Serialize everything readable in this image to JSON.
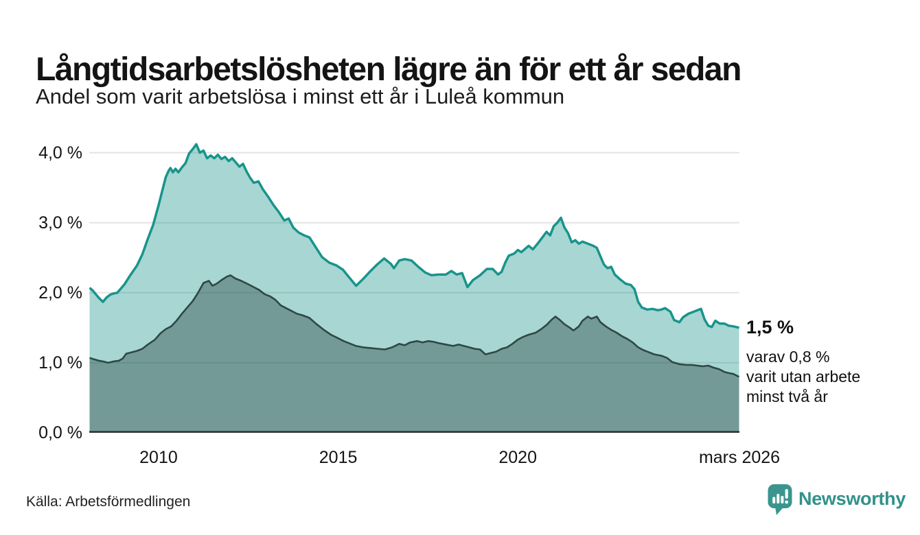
{
  "header": {
    "title": "Långtidsarbetslösheten lägre än för ett år sedan",
    "subtitle": "Andel som varit arbetslösa i minst ett år i Luleå kommun"
  },
  "chart_data": {
    "type": "area",
    "title": "Långtidsarbetslösheten lägre än för ett år sedan",
    "subtitle": "Andel som varit arbetslösa i minst ett år i Luleå kommun",
    "unit": "%",
    "grid": "horizontal",
    "legend": "none",
    "x_range": [
      2008.07,
      2026.17
    ],
    "y_range": [
      0,
      4.27
    ],
    "y_axis": {
      "ticks": [
        {
          "label": "0,0 %",
          "value": 0
        },
        {
          "label": "1,0 %",
          "value": 1
        },
        {
          "label": "2,0 %",
          "value": 2
        },
        {
          "label": "3,0 %",
          "value": 3
        },
        {
          "label": "4,0 %",
          "value": 4
        }
      ]
    },
    "x_axis": {
      "ticks": [
        {
          "label": "2010",
          "value": 2010
        },
        {
          "label": "2015",
          "value": 2015
        },
        {
          "label": "2020",
          "value": 2020
        },
        {
          "label": "mars 2026",
          "value": 2026.17
        }
      ]
    },
    "series": [
      {
        "name": "arbetslösa minst ett år",
        "line_color": "#18948b",
        "fill_color": "rgba(24,148,139,0.38)",
        "line_width": 3.5,
        "end_value_label": "1,5 %",
        "points": [
          [
            2008.08,
            2.07
          ],
          [
            2008.17,
            2.03
          ],
          [
            2008.25,
            1.98
          ],
          [
            2008.33,
            1.93
          ],
          [
            2008.45,
            1.87
          ],
          [
            2008.55,
            1.93
          ],
          [
            2008.65,
            1.97
          ],
          [
            2008.75,
            1.99
          ],
          [
            2008.85,
            2.0
          ],
          [
            2008.95,
            2.06
          ],
          [
            2009.05,
            2.12
          ],
          [
            2009.2,
            2.24
          ],
          [
            2009.4,
            2.39
          ],
          [
            2009.55,
            2.55
          ],
          [
            2009.7,
            2.77
          ],
          [
            2009.85,
            2.97
          ],
          [
            2010.0,
            3.25
          ],
          [
            2010.1,
            3.45
          ],
          [
            2010.2,
            3.65
          ],
          [
            2010.28,
            3.74
          ],
          [
            2010.33,
            3.78
          ],
          [
            2010.4,
            3.72
          ],
          [
            2010.47,
            3.77
          ],
          [
            2010.55,
            3.72
          ],
          [
            2010.65,
            3.79
          ],
          [
            2010.75,
            3.85
          ],
          [
            2010.85,
            3.99
          ],
          [
            2010.95,
            4.05
          ],
          [
            2011.05,
            4.12
          ],
          [
            2011.15,
            4.0
          ],
          [
            2011.25,
            4.03
          ],
          [
            2011.35,
            3.92
          ],
          [
            2011.45,
            3.96
          ],
          [
            2011.55,
            3.92
          ],
          [
            2011.65,
            3.97
          ],
          [
            2011.75,
            3.91
          ],
          [
            2011.85,
            3.94
          ],
          [
            2011.95,
            3.88
          ],
          [
            2012.05,
            3.92
          ],
          [
            2012.15,
            3.86
          ],
          [
            2012.25,
            3.8
          ],
          [
            2012.35,
            3.84
          ],
          [
            2012.45,
            3.73
          ],
          [
            2012.55,
            3.64
          ],
          [
            2012.65,
            3.57
          ],
          [
            2012.78,
            3.59
          ],
          [
            2012.9,
            3.48
          ],
          [
            2013.05,
            3.37
          ],
          [
            2013.2,
            3.25
          ],
          [
            2013.35,
            3.15
          ],
          [
            2013.5,
            3.03
          ],
          [
            2013.62,
            3.06
          ],
          [
            2013.75,
            2.93
          ],
          [
            2013.9,
            2.86
          ],
          [
            2014.05,
            2.82
          ],
          [
            2014.2,
            2.79
          ],
          [
            2014.35,
            2.67
          ],
          [
            2014.55,
            2.51
          ],
          [
            2014.75,
            2.43
          ],
          [
            2014.95,
            2.39
          ],
          [
            2015.13,
            2.33
          ],
          [
            2015.32,
            2.21
          ],
          [
            2015.5,
            2.1
          ],
          [
            2015.7,
            2.2
          ],
          [
            2015.9,
            2.31
          ],
          [
            2016.1,
            2.41
          ],
          [
            2016.28,
            2.49
          ],
          [
            2016.47,
            2.41
          ],
          [
            2016.55,
            2.35
          ],
          [
            2016.7,
            2.46
          ],
          [
            2016.85,
            2.48
          ],
          [
            2017.04,
            2.46
          ],
          [
            2017.23,
            2.37
          ],
          [
            2017.42,
            2.29
          ],
          [
            2017.6,
            2.25
          ],
          [
            2017.8,
            2.26
          ],
          [
            2018.0,
            2.26
          ],
          [
            2018.15,
            2.31
          ],
          [
            2018.3,
            2.26
          ],
          [
            2018.45,
            2.28
          ],
          [
            2018.6,
            2.08
          ],
          [
            2018.75,
            2.18
          ],
          [
            2018.95,
            2.25
          ],
          [
            2019.14,
            2.34
          ],
          [
            2019.3,
            2.34
          ],
          [
            2019.45,
            2.26
          ],
          [
            2019.55,
            2.3
          ],
          [
            2019.65,
            2.43
          ],
          [
            2019.75,
            2.53
          ],
          [
            2019.9,
            2.56
          ],
          [
            2020.0,
            2.61
          ],
          [
            2020.1,
            2.58
          ],
          [
            2020.3,
            2.67
          ],
          [
            2020.42,
            2.62
          ],
          [
            2020.55,
            2.7
          ],
          [
            2020.7,
            2.8
          ],
          [
            2020.8,
            2.87
          ],
          [
            2020.9,
            2.82
          ],
          [
            2021.0,
            2.95
          ],
          [
            2021.1,
            3.0
          ],
          [
            2021.2,
            3.07
          ],
          [
            2021.3,
            2.93
          ],
          [
            2021.4,
            2.85
          ],
          [
            2021.5,
            2.72
          ],
          [
            2021.6,
            2.75
          ],
          [
            2021.7,
            2.7
          ],
          [
            2021.8,
            2.73
          ],
          [
            2021.9,
            2.71
          ],
          [
            2022.0,
            2.69
          ],
          [
            2022.1,
            2.67
          ],
          [
            2022.2,
            2.64
          ],
          [
            2022.3,
            2.52
          ],
          [
            2022.4,
            2.4
          ],
          [
            2022.5,
            2.35
          ],
          [
            2022.6,
            2.37
          ],
          [
            2022.7,
            2.26
          ],
          [
            2022.85,
            2.19
          ],
          [
            2023.0,
            2.13
          ],
          [
            2023.15,
            2.11
          ],
          [
            2023.25,
            2.05
          ],
          [
            2023.35,
            1.87
          ],
          [
            2023.45,
            1.79
          ],
          [
            2023.6,
            1.76
          ],
          [
            2023.75,
            1.77
          ],
          [
            2023.9,
            1.75
          ],
          [
            2024.0,
            1.76
          ],
          [
            2024.1,
            1.78
          ],
          [
            2024.25,
            1.73
          ],
          [
            2024.35,
            1.61
          ],
          [
            2024.5,
            1.58
          ],
          [
            2024.6,
            1.65
          ],
          [
            2024.75,
            1.7
          ],
          [
            2024.9,
            1.73
          ],
          [
            2025.0,
            1.75
          ],
          [
            2025.1,
            1.77
          ],
          [
            2025.2,
            1.62
          ],
          [
            2025.3,
            1.53
          ],
          [
            2025.4,
            1.51
          ],
          [
            2025.5,
            1.6
          ],
          [
            2025.62,
            1.56
          ],
          [
            2025.75,
            1.56
          ],
          [
            2025.87,
            1.53
          ],
          [
            2026.0,
            1.52
          ],
          [
            2026.16,
            1.5
          ]
        ]
      },
      {
        "name": "arbetslösa minst två år",
        "line_color": "#2e4843",
        "fill_color": "rgba(42,72,66,0.42)",
        "line_width": 2.6,
        "end_value_label": "0,8 %",
        "points": [
          [
            2008.08,
            1.07
          ],
          [
            2008.2,
            1.05
          ],
          [
            2008.33,
            1.03
          ],
          [
            2008.45,
            1.02
          ],
          [
            2008.6,
            1.0
          ],
          [
            2008.75,
            1.02
          ],
          [
            2008.9,
            1.03
          ],
          [
            2009.0,
            1.06
          ],
          [
            2009.1,
            1.13
          ],
          [
            2009.25,
            1.15
          ],
          [
            2009.4,
            1.17
          ],
          [
            2009.55,
            1.2
          ],
          [
            2009.7,
            1.26
          ],
          [
            2009.9,
            1.33
          ],
          [
            2010.05,
            1.42
          ],
          [
            2010.2,
            1.48
          ],
          [
            2010.35,
            1.52
          ],
          [
            2010.5,
            1.6
          ],
          [
            2010.65,
            1.7
          ],
          [
            2010.8,
            1.79
          ],
          [
            2010.95,
            1.88
          ],
          [
            2011.1,
            2.0
          ],
          [
            2011.25,
            2.14
          ],
          [
            2011.4,
            2.17
          ],
          [
            2011.5,
            2.1
          ],
          [
            2011.62,
            2.13
          ],
          [
            2011.75,
            2.18
          ],
          [
            2011.9,
            2.23
          ],
          [
            2012.0,
            2.25
          ],
          [
            2012.15,
            2.2
          ],
          [
            2012.3,
            2.17
          ],
          [
            2012.5,
            2.12
          ],
          [
            2012.65,
            2.08
          ],
          [
            2012.8,
            2.04
          ],
          [
            2012.95,
            1.98
          ],
          [
            2013.1,
            1.95
          ],
          [
            2013.25,
            1.9
          ],
          [
            2013.4,
            1.82
          ],
          [
            2013.55,
            1.78
          ],
          [
            2013.7,
            1.74
          ],
          [
            2013.85,
            1.7
          ],
          [
            2014.0,
            1.68
          ],
          [
            2014.2,
            1.64
          ],
          [
            2014.4,
            1.55
          ],
          [
            2014.6,
            1.47
          ],
          [
            2014.8,
            1.4
          ],
          [
            2015.0,
            1.35
          ],
          [
            2015.15,
            1.31
          ],
          [
            2015.3,
            1.28
          ],
          [
            2015.5,
            1.24
          ],
          [
            2015.7,
            1.22
          ],
          [
            2015.9,
            1.21
          ],
          [
            2016.1,
            1.2
          ],
          [
            2016.3,
            1.19
          ],
          [
            2016.5,
            1.22
          ],
          [
            2016.7,
            1.27
          ],
          [
            2016.85,
            1.25
          ],
          [
            2017.0,
            1.29
          ],
          [
            2017.2,
            1.31
          ],
          [
            2017.35,
            1.29
          ],
          [
            2017.5,
            1.31
          ],
          [
            2017.65,
            1.3
          ],
          [
            2017.8,
            1.28
          ],
          [
            2018.0,
            1.26
          ],
          [
            2018.2,
            1.24
          ],
          [
            2018.35,
            1.26
          ],
          [
            2018.5,
            1.24
          ],
          [
            2018.65,
            1.22
          ],
          [
            2018.8,
            1.2
          ],
          [
            2018.95,
            1.19
          ],
          [
            2019.1,
            1.12
          ],
          [
            2019.25,
            1.14
          ],
          [
            2019.4,
            1.16
          ],
          [
            2019.55,
            1.2
          ],
          [
            2019.7,
            1.22
          ],
          [
            2019.85,
            1.27
          ],
          [
            2020.0,
            1.33
          ],
          [
            2020.15,
            1.37
          ],
          [
            2020.3,
            1.4
          ],
          [
            2020.5,
            1.43
          ],
          [
            2020.65,
            1.48
          ],
          [
            2020.8,
            1.54
          ],
          [
            2020.95,
            1.62
          ],
          [
            2021.05,
            1.66
          ],
          [
            2021.15,
            1.62
          ],
          [
            2021.3,
            1.55
          ],
          [
            2021.45,
            1.5
          ],
          [
            2021.55,
            1.46
          ],
          [
            2021.7,
            1.52
          ],
          [
            2021.8,
            1.6
          ],
          [
            2021.95,
            1.66
          ],
          [
            2022.05,
            1.63
          ],
          [
            2022.2,
            1.66
          ],
          [
            2022.3,
            1.58
          ],
          [
            2022.45,
            1.52
          ],
          [
            2022.6,
            1.47
          ],
          [
            2022.75,
            1.43
          ],
          [
            2022.9,
            1.38
          ],
          [
            2023.05,
            1.34
          ],
          [
            2023.2,
            1.29
          ],
          [
            2023.35,
            1.22
          ],
          [
            2023.5,
            1.18
          ],
          [
            2023.65,
            1.15
          ],
          [
            2023.8,
            1.12
          ],
          [
            2024.0,
            1.1
          ],
          [
            2024.15,
            1.07
          ],
          [
            2024.3,
            1.01
          ],
          [
            2024.5,
            0.98
          ],
          [
            2024.7,
            0.97
          ],
          [
            2024.85,
            0.97
          ],
          [
            2025.0,
            0.96
          ],
          [
            2025.15,
            0.95
          ],
          [
            2025.3,
            0.96
          ],
          [
            2025.45,
            0.93
          ],
          [
            2025.6,
            0.91
          ],
          [
            2025.75,
            0.87
          ],
          [
            2025.9,
            0.85
          ],
          [
            2026.0,
            0.84
          ],
          [
            2026.16,
            0.8
          ]
        ]
      }
    ],
    "annotation": {
      "headline": "1,5 %",
      "lines": [
        "varav 0,8 %",
        "varit utan arbete",
        "minst två år"
      ]
    }
  },
  "footer": {
    "source": "Källa: Arbetsförmedlingen",
    "brand": "Newsworthy"
  },
  "colors": {
    "accent_teal": "#18948b",
    "dark_series": "#2e4843",
    "brand_teal": "#37948d",
    "grid": "#e3e3e3",
    "axis": "#2b2b2b",
    "text": "#111111"
  }
}
